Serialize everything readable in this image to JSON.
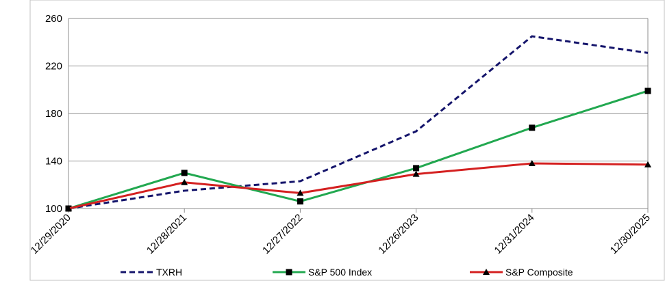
{
  "chart_data": {
    "type": "line",
    "title": "",
    "xlabel": "",
    "ylabel": "",
    "categories": [
      "12/29/2020",
      "12/28/2021",
      "12/27/2022",
      "12/26/2023",
      "12/31/2024",
      "12/30/2025"
    ],
    "ylim": [
      100,
      260
    ],
    "yticks": [
      100,
      140,
      180,
      220,
      260
    ],
    "grid": "horizontal",
    "legend_position": "bottom",
    "series": [
      {
        "name": "TXRH",
        "values": [
          100,
          115,
          123,
          165,
          245,
          231
        ],
        "color": "#14146b",
        "style": "dashed",
        "marker": "none"
      },
      {
        "name": "S&P 500 Index",
        "values": [
          100,
          130,
          106,
          134,
          168,
          199
        ],
        "color": "#22a850",
        "style": "solid",
        "marker": "square"
      },
      {
        "name": "S&P Composite",
        "values": [
          100,
          122,
          113,
          129,
          138,
          137
        ],
        "color": "#d42020",
        "style": "solid",
        "marker": "triangle"
      }
    ]
  }
}
